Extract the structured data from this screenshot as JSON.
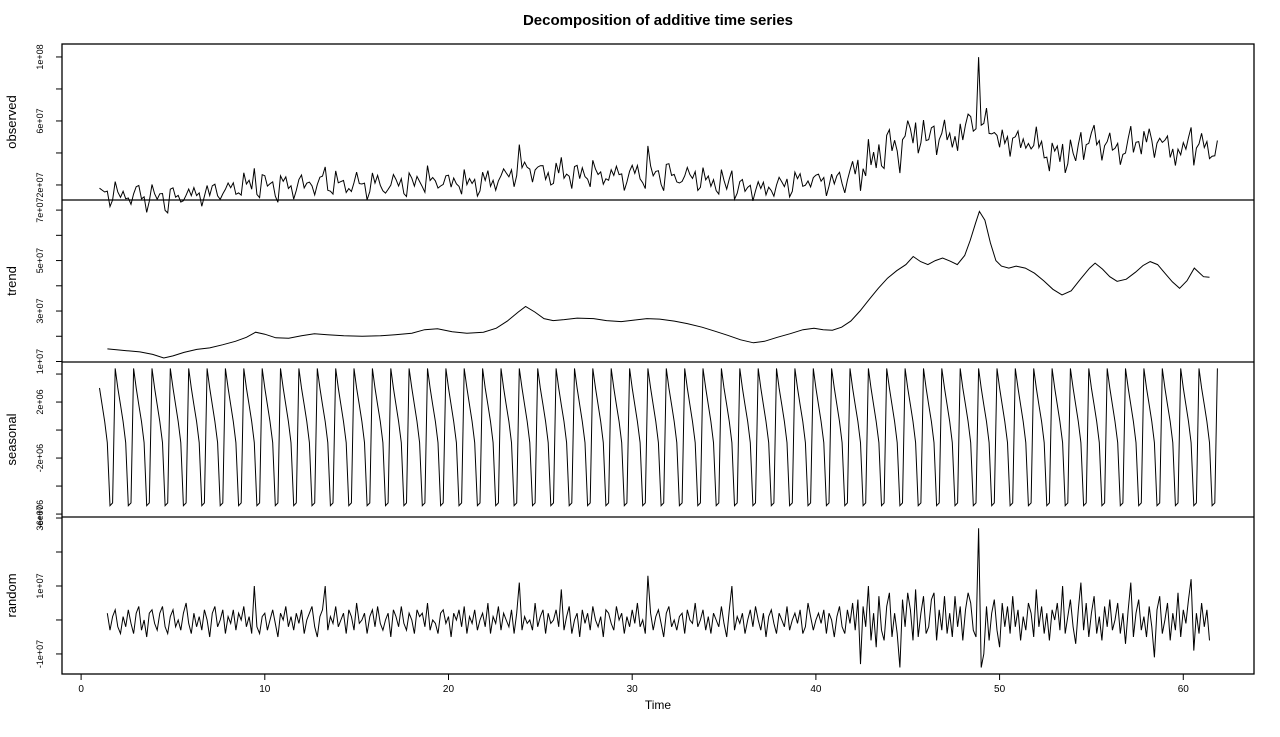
{
  "title": "Decomposition of additive time series",
  "xlabel": "Time",
  "colors": {
    "line": "#000000",
    "axis": "#000000",
    "background": "#ffffff"
  },
  "chart_data": {
    "type": "line",
    "title": "Decomposition of additive time series",
    "xlabel": "Time",
    "x_ticks": [
      0,
      10,
      20,
      30,
      40,
      50,
      60
    ],
    "xlim": [
      -1.04,
      63.85
    ],
    "grid": false,
    "legend": "none",
    "values_unit": 1000000,
    "frequency": 7,
    "start_time": 1,
    "n_points": 427,
    "observed_rule": "observed = trend + seasonal + random (values in units of 1e6)",
    "panels": [
      {
        "key": "observed",
        "label": "observed",
        "ylim": [
          10.6,
          108.1
        ],
        "yticks": [
          {
            "v": 20,
            "label": "2e+07"
          },
          {
            "v": 40,
            "label": ""
          },
          {
            "v": 60,
            "label": "6e+07"
          },
          {
            "v": 80,
            "label": ""
          },
          {
            "v": 100,
            "label": "1e+08"
          }
        ]
      },
      {
        "key": "trend",
        "label": "trend",
        "ylim": [
          9.8,
          74.0
        ],
        "yticks": [
          {
            "v": 10,
            "label": "1e+07"
          },
          {
            "v": 20,
            "label": ""
          },
          {
            "v": 30,
            "label": "3e+07"
          },
          {
            "v": 40,
            "label": ""
          },
          {
            "v": 50,
            "label": "5e+07"
          },
          {
            "v": 60,
            "label": ""
          },
          {
            "v": 70,
            "label": "7e+07"
          }
        ]
      },
      {
        "key": "seasonal",
        "label": "seasonal",
        "ylim": [
          -6.21,
          4.86
        ],
        "yticks": [
          {
            "v": -6,
            "label": "-6e+06"
          },
          {
            "v": -4,
            "label": ""
          },
          {
            "v": -2,
            "label": "-2e+06"
          },
          {
            "v": 0,
            "label": ""
          },
          {
            "v": 2,
            "label": "2e+06"
          },
          {
            "v": 4,
            "label": ""
          }
        ]
      },
      {
        "key": "random",
        "label": "random",
        "ylim": [
          -15.9,
          30.3
        ],
        "yticks": [
          {
            "v": -10,
            "label": "-1e+07"
          },
          {
            "v": 0,
            "label": ""
          },
          {
            "v": 10,
            "label": "1e+07"
          },
          {
            "v": 20,
            "label": ""
          },
          {
            "v": 30,
            "label": "3e+07"
          }
        ]
      }
    ],
    "seasonal_pattern_e6": [
      3.0,
      1.8,
      0.6,
      -0.9,
      -5.4,
      -5.2,
      4.4
    ],
    "trend_keypoints": [
      [
        1.43,
        15
      ],
      [
        2,
        14.6
      ],
      [
        2.6,
        14.2
      ],
      [
        3.2,
        13.8
      ],
      [
        3.9,
        12.8
      ],
      [
        4.5,
        11.4
      ],
      [
        5,
        12.2
      ],
      [
        5.6,
        13.6
      ],
      [
        6.3,
        14.8
      ],
      [
        7,
        15.4
      ],
      [
        7.7,
        16.6
      ],
      [
        8.4,
        18
      ],
      [
        9,
        19.6
      ],
      [
        9.5,
        21.6
      ],
      [
        10,
        20.8
      ],
      [
        10.6,
        19.4
      ],
      [
        11.3,
        19.2
      ],
      [
        12,
        20.2
      ],
      [
        12.7,
        21
      ],
      [
        13.4,
        20.6
      ],
      [
        14.3,
        20.2
      ],
      [
        15.3,
        20
      ],
      [
        16.3,
        20.2
      ],
      [
        17.1,
        20.6
      ],
      [
        18,
        21.2
      ],
      [
        18.7,
        22.6
      ],
      [
        19.4,
        23
      ],
      [
        20.2,
        21.8
      ],
      [
        21,
        21.2
      ],
      [
        21.9,
        21.6
      ],
      [
        22.6,
        23.2
      ],
      [
        23.2,
        26
      ],
      [
        23.8,
        29.6
      ],
      [
        24.2,
        31.8
      ],
      [
        24.7,
        29.6
      ],
      [
        25.2,
        27
      ],
      [
        25.7,
        26.2
      ],
      [
        26.3,
        26.6
      ],
      [
        27,
        27.2
      ],
      [
        27.9,
        27
      ],
      [
        28.6,
        26.2
      ],
      [
        29.4,
        25.8
      ],
      [
        30.1,
        26.4
      ],
      [
        30.8,
        27
      ],
      [
        31.5,
        26.8
      ],
      [
        32.3,
        26
      ],
      [
        33,
        25
      ],
      [
        33.8,
        23.6
      ],
      [
        34.5,
        22
      ],
      [
        35.2,
        20.4
      ],
      [
        35.9,
        18.6
      ],
      [
        36.6,
        17.4
      ],
      [
        37.2,
        18
      ],
      [
        37.9,
        19.6
      ],
      [
        38.6,
        21
      ],
      [
        39.3,
        22.6
      ],
      [
        39.9,
        23.2
      ],
      [
        40.4,
        22.6
      ],
      [
        40.9,
        22.4
      ],
      [
        41.4,
        23.6
      ],
      [
        41.9,
        26
      ],
      [
        42.4,
        30
      ],
      [
        42.9,
        34.6
      ],
      [
        43.4,
        39
      ],
      [
        43.9,
        43
      ],
      [
        44.4,
        46
      ],
      [
        44.9,
        48.4
      ],
      [
        45.3,
        51.6
      ],
      [
        45.7,
        49.6
      ],
      [
        46.1,
        48.4
      ],
      [
        46.5,
        50
      ],
      [
        46.9,
        51
      ],
      [
        47.3,
        49.8
      ],
      [
        47.7,
        48.4
      ],
      [
        48.1,
        52
      ],
      [
        48.4,
        58
      ],
      [
        48.7,
        65
      ],
      [
        48.9,
        69.5
      ],
      [
        49.2,
        66
      ],
      [
        49.5,
        57
      ],
      [
        49.8,
        50
      ],
      [
        50.1,
        47.8
      ],
      [
        50.5,
        47
      ],
      [
        50.9,
        47.8
      ],
      [
        51.4,
        47
      ],
      [
        51.9,
        45
      ],
      [
        52.4,
        42
      ],
      [
        52.9,
        38.6
      ],
      [
        53.4,
        36.4
      ],
      [
        53.9,
        38
      ],
      [
        54.4,
        42.6
      ],
      [
        54.9,
        47
      ],
      [
        55.2,
        49
      ],
      [
        55.6,
        46.6
      ],
      [
        56,
        43.6
      ],
      [
        56.4,
        41.8
      ],
      [
        56.9,
        42.6
      ],
      [
        57.4,
        45.4
      ],
      [
        57.8,
        48
      ],
      [
        58.2,
        49.6
      ],
      [
        58.6,
        48.4
      ],
      [
        59,
        45
      ],
      [
        59.4,
        41.6
      ],
      [
        59.8,
        39
      ],
      [
        60.2,
        42
      ],
      [
        60.6,
        47
      ],
      [
        60.9,
        45
      ],
      [
        61.1,
        43.6
      ],
      [
        61.43,
        43.4
      ]
    ],
    "random_e6": [
      2,
      -3,
      1,
      3,
      -2,
      -4,
      1,
      -2,
      3,
      -1,
      -4,
      2,
      4,
      -3,
      0,
      -5,
      2,
      3,
      -1,
      -3,
      2,
      4,
      -2,
      -4,
      1,
      3,
      -2,
      0,
      -3,
      2,
      5,
      -1,
      -4,
      2,
      -2,
      1,
      -3,
      3,
      0,
      -5,
      2,
      4,
      -2,
      0,
      3,
      -4,
      1,
      -1,
      3,
      -3,
      2,
      0,
      4,
      -2,
      1,
      -4,
      10,
      -2,
      -4,
      1,
      2,
      -3,
      0,
      3,
      -1,
      -5,
      2,
      0,
      4,
      -2,
      1,
      -3,
      2,
      -1,
      3,
      -4,
      0,
      2,
      4,
      -2,
      -5,
      1,
      3,
      10,
      -3,
      1,
      -1,
      4,
      -2,
      0,
      2,
      -4,
      3,
      1,
      -3,
      5,
      -1,
      0,
      2,
      -4,
      1,
      3,
      -2,
      4,
      -1,
      -3,
      0,
      2,
      -5,
      3,
      1,
      -2,
      4,
      -1,
      -3,
      2,
      0,
      -4,
      3,
      1,
      2,
      -2,
      5,
      -3,
      0,
      -1,
      -4,
      2,
      3,
      -1,
      1,
      -5,
      2,
      0,
      3,
      -2,
      4,
      -4,
      1,
      -1,
      3,
      -3,
      0,
      2,
      -2,
      5,
      -4,
      1,
      -1,
      4,
      -3,
      2,
      0,
      -2,
      3,
      -4,
      2,
      11,
      -3,
      1,
      -1,
      0,
      -3,
      5,
      -2,
      1,
      3,
      -4,
      2,
      -1,
      0,
      3,
      -2,
      9,
      -3,
      1,
      4,
      -4,
      0,
      2,
      -5,
      3,
      -1,
      2,
      -3,
      4,
      0,
      -2,
      1,
      -5,
      3,
      2,
      -1,
      -3,
      4,
      0,
      2,
      -4,
      1,
      -2,
      3,
      -1,
      5,
      -2,
      0,
      -4,
      13,
      2,
      -3,
      1,
      3,
      -1,
      -5,
      2,
      4,
      -2,
      0,
      -3,
      1,
      2,
      -4,
      3,
      0,
      -1,
      5,
      -2,
      0,
      3,
      -3,
      1,
      -4,
      2,
      0,
      -2,
      4,
      -1,
      -5,
      3,
      10,
      -3,
      1,
      -1,
      2,
      -4,
      0,
      3,
      -2,
      4,
      0,
      -3,
      2,
      -5,
      1,
      3,
      -1,
      -4,
      2,
      0,
      -2,
      4,
      -3,
      0,
      2,
      -1,
      3,
      -4,
      -2,
      5,
      1,
      -3,
      0,
      2,
      -1,
      3,
      -4,
      2,
      0,
      -5,
      1,
      4,
      -2,
      -4,
      3,
      -1,
      5,
      -3,
      6,
      -13,
      4,
      -2,
      10,
      -6,
      2,
      -8,
      7,
      -3,
      -6,
      4,
      8,
      -5,
      2,
      -4,
      -14,
      6,
      -2,
      8,
      3,
      -6,
      9,
      -5,
      2,
      7,
      -4,
      -2,
      6,
      8,
      -6,
      3,
      -3,
      7,
      -4,
      2,
      -5,
      7,
      -2,
      4,
      -6,
      3,
      8,
      5,
      -3,
      -5,
      27,
      -14,
      -10,
      4,
      -6,
      2,
      6,
      -3,
      -8,
      5,
      -2,
      4,
      -4,
      7,
      -2,
      3,
      -6,
      1,
      -3,
      5,
      2,
      -5,
      9,
      -2,
      4,
      -4,
      2,
      -6,
      3,
      0,
      5,
      -3,
      10,
      -4,
      1,
      6,
      -2,
      -7,
      3,
      11,
      -3,
      5,
      -5,
      2,
      7,
      -4,
      1,
      -6,
      4,
      -2,
      6,
      -3,
      0,
      5,
      -4,
      2,
      -7,
      3,
      11,
      -5,
      2,
      6,
      -3,
      1,
      -5,
      4,
      -2,
      -11,
      3,
      7,
      -4,
      0,
      5,
      -6,
      2,
      -3,
      8,
      -5,
      3,
      -1,
      6,
      12,
      -9,
      2,
      -4,
      5,
      -2,
      3,
      -6
    ]
  }
}
